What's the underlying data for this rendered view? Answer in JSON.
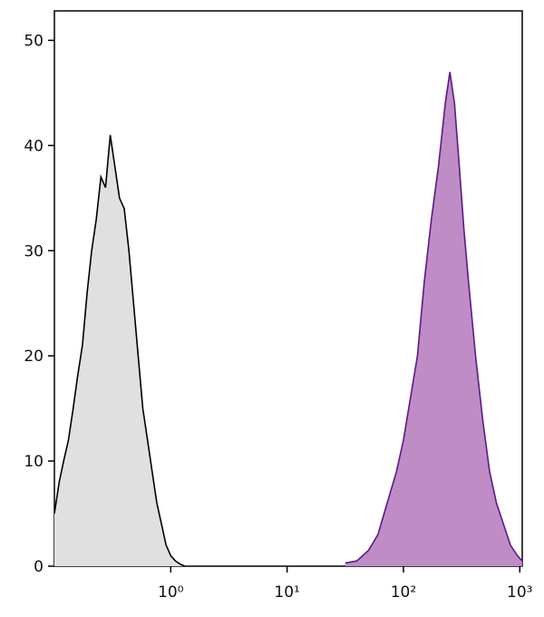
{
  "chart_data": {
    "type": "area",
    "xscale": "log",
    "xlim": [
      0.1,
      1050
    ],
    "ylim": [
      0,
      52.8
    ],
    "xticks": [
      {
        "value": 1,
        "label": "10⁰"
      },
      {
        "value": 10,
        "label": "10¹"
      },
      {
        "value": 100,
        "label": "10²"
      },
      {
        "value": 1000,
        "label": "10³"
      }
    ],
    "yticks": [
      0,
      10,
      20,
      30,
      40,
      50
    ],
    "series": [
      {
        "color": "#000000",
        "fill": "#e0e0e0",
        "x": [
          0.1,
          0.11,
          0.12,
          0.132,
          0.145,
          0.158,
          0.174,
          0.191,
          0.209,
          0.229,
          0.251,
          0.275,
          0.302,
          0.331,
          0.363,
          0.398,
          0.437,
          0.479,
          0.525,
          0.575,
          0.631,
          0.692,
          0.759,
          0.832,
          0.912,
          1,
          1.096,
          1.202,
          1.318
        ],
        "values": [
          5,
          8,
          10,
          12,
          15,
          18,
          21,
          26,
          30,
          33,
          37,
          36,
          41,
          38,
          35,
          34,
          30,
          25,
          20,
          15,
          12,
          9,
          6,
          4,
          2,
          1,
          0.5,
          0.2,
          0
        ]
      },
      {
        "color": "#5a1a8a",
        "fill": "#bf8cc5",
        "x": [
          31.6,
          39.8,
          50.1,
          60.3,
          72.4,
          87.1,
          100,
          115,
          132,
          151,
          174,
          200,
          229,
          251,
          275,
          302,
          331,
          363,
          417,
          479,
          550,
          631,
          724,
          832,
          955,
          1047
        ],
        "values": [
          0.3,
          0.5,
          1.5,
          3,
          6,
          9,
          12,
          16,
          20,
          27,
          33,
          38,
          44,
          47,
          44,
          38,
          32,
          27,
          20,
          14,
          9,
          6,
          4,
          2,
          1,
          0.5
        ]
      }
    ]
  }
}
